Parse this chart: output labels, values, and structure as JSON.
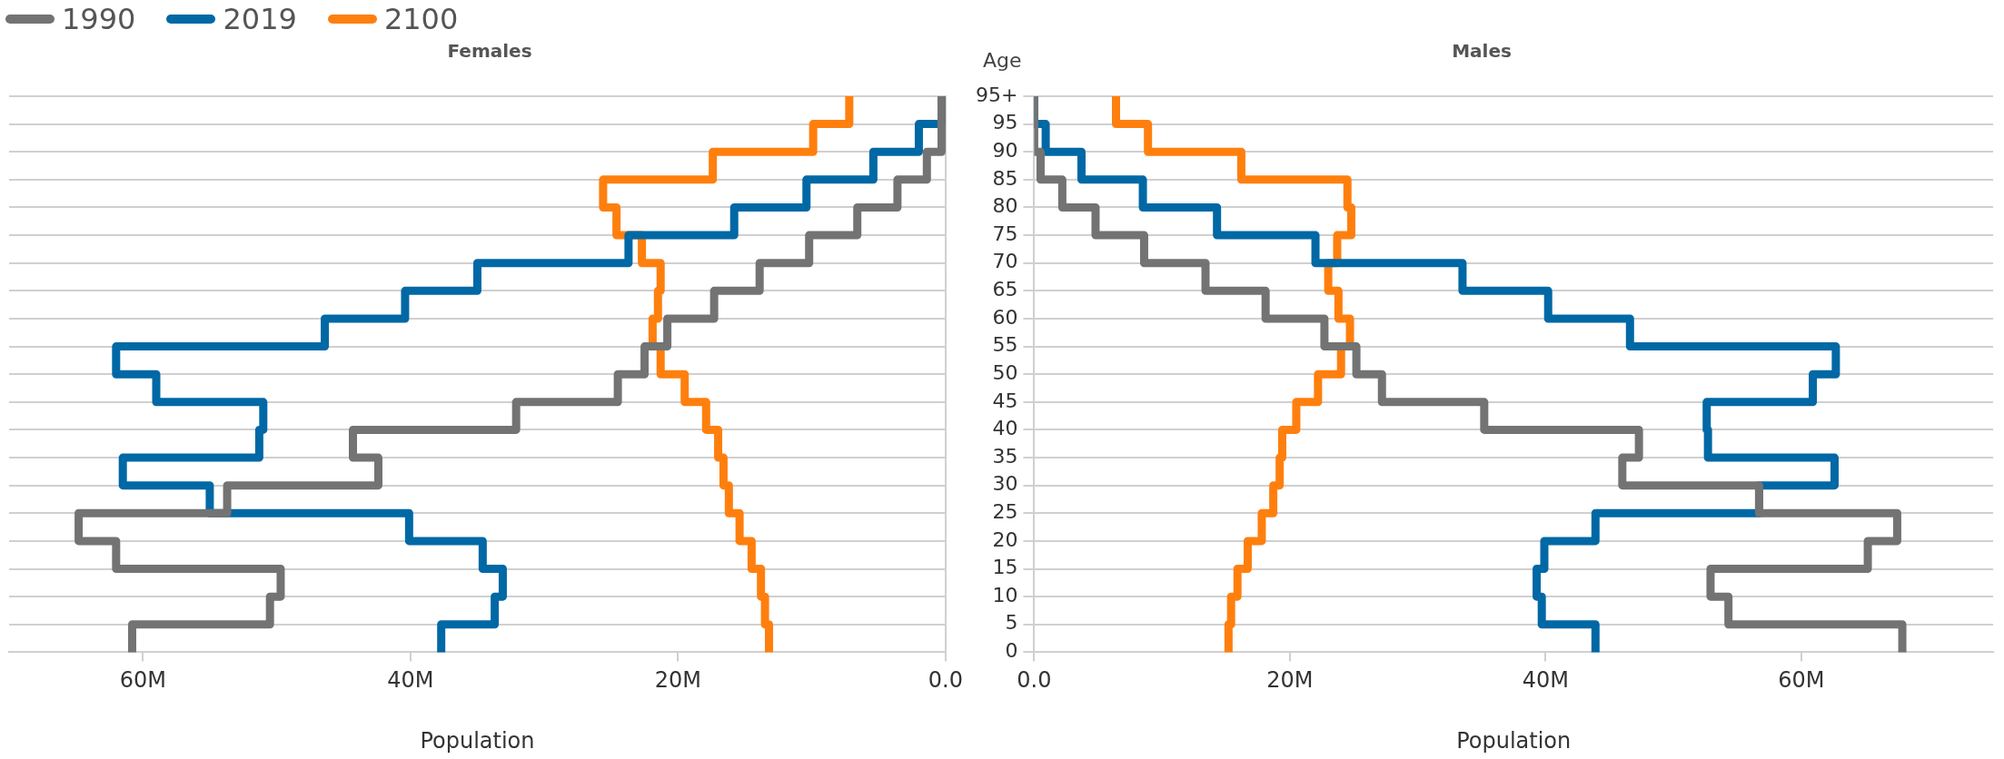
{
  "chart_data": [
    {
      "type": "step",
      "orientation": "horizontal",
      "title": "Females",
      "xlabel": "Population",
      "legend": "top left",
      "grid": "y",
      "tick_labels": "x",
      "marker": "none",
      "line_style": "solid",
      "x": [
        0,
        5,
        10,
        15,
        20,
        25,
        30,
        35,
        40,
        45,
        50,
        55,
        60,
        65,
        70,
        75,
        80,
        85,
        90,
        95,
        100
      ],
      "xlim": [
        70,
        0
      ],
      "xticks": [
        {
          "value": 60,
          "label": "60M"
        },
        {
          "value": 40,
          "label": "40M"
        },
        {
          "value": 20,
          "label": "20M"
        },
        {
          "value": 0,
          "label": "0.0"
        }
      ],
      "ylim": [
        0,
        100
      ],
      "yticks": [
        0,
        5,
        10,
        15,
        20,
        25,
        30,
        35,
        40,
        45,
        50,
        55,
        60,
        65,
        70,
        75,
        80,
        85,
        90,
        95,
        100
      ],
      "series": [
        {
          "name": "1990",
          "color": "#737373",
          "values": [
            60.8,
            50.5,
            49.7,
            62.0,
            64.8,
            53.7,
            42.4,
            44.3,
            32.1,
            24.5,
            22.5,
            20.8,
            17.3,
            13.9,
            10.2,
            6.6,
            3.6,
            1.4,
            0.3,
            0.3,
            0.3
          ]
        },
        {
          "name": "2019",
          "color": "#0068a5",
          "values": [
            37.7,
            33.7,
            33.1,
            34.6,
            40.1,
            55.0,
            61.5,
            51.3,
            51.0,
            59.0,
            62.0,
            46.4,
            40.4,
            35.0,
            23.7,
            15.8,
            10.4,
            5.4,
            2.0,
            0.3,
            0.3
          ]
        },
        {
          "name": "2100",
          "color": "#ff7f0e",
          "values": [
            13.2,
            13.5,
            13.8,
            14.5,
            15.4,
            16.2,
            16.6,
            17.0,
            17.9,
            19.5,
            21.3,
            21.9,
            21.5,
            21.3,
            22.7,
            24.6,
            25.6,
            17.4,
            9.9,
            7.2,
            7.2
          ]
        }
      ]
    },
    {
      "type": "step",
      "orientation": "horizontal",
      "title": "Males",
      "xlabel": "Population",
      "ylabel": "Age",
      "grid": "y",
      "marker": "none",
      "line_style": "solid",
      "x": [
        0,
        5,
        10,
        15,
        20,
        25,
        30,
        35,
        40,
        45,
        50,
        55,
        60,
        65,
        70,
        75,
        80,
        85,
        90,
        95,
        100
      ],
      "xlim": [
        0,
        75
      ],
      "xticks": [
        {
          "value": 0,
          "label": "0.0"
        },
        {
          "value": 20,
          "label": "20M"
        },
        {
          "value": 40,
          "label": "40M"
        },
        {
          "value": 60,
          "label": "60M"
        }
      ],
      "ylim": [
        0,
        100
      ],
      "yticks": [
        0,
        5,
        10,
        15,
        20,
        25,
        30,
        35,
        40,
        45,
        50,
        55,
        60,
        65,
        70,
        75,
        80,
        85,
        90,
        95,
        {
          "value": 100,
          "label": "95+"
        }
      ],
      "series": [
        {
          "color": "#737373",
          "values": [
            67.9,
            54.3,
            52.9,
            65.2,
            67.5,
            56.7,
            46.0,
            47.3,
            35.2,
            27.2,
            25.2,
            22.7,
            18.1,
            13.4,
            8.6,
            4.8,
            2.2,
            0.5,
            0.0,
            0.0,
            0.0
          ]
        },
        {
          "color": "#0068a5",
          "values": [
            43.9,
            39.7,
            39.3,
            39.9,
            43.9,
            56.7,
            62.6,
            52.7,
            52.6,
            60.9,
            62.7,
            46.6,
            40.2,
            33.5,
            22.0,
            14.3,
            8.5,
            3.7,
            0.9,
            0.0,
            0.0
          ]
        },
        {
          "color": "#ff7f0e",
          "values": [
            15.2,
            15.4,
            15.9,
            16.7,
            17.8,
            18.7,
            19.2,
            19.4,
            20.5,
            22.2,
            24.0,
            24.7,
            23.8,
            23.0,
            23.7,
            24.8,
            24.5,
            16.2,
            8.9,
            6.4,
            6.4
          ]
        }
      ]
    }
  ]
}
